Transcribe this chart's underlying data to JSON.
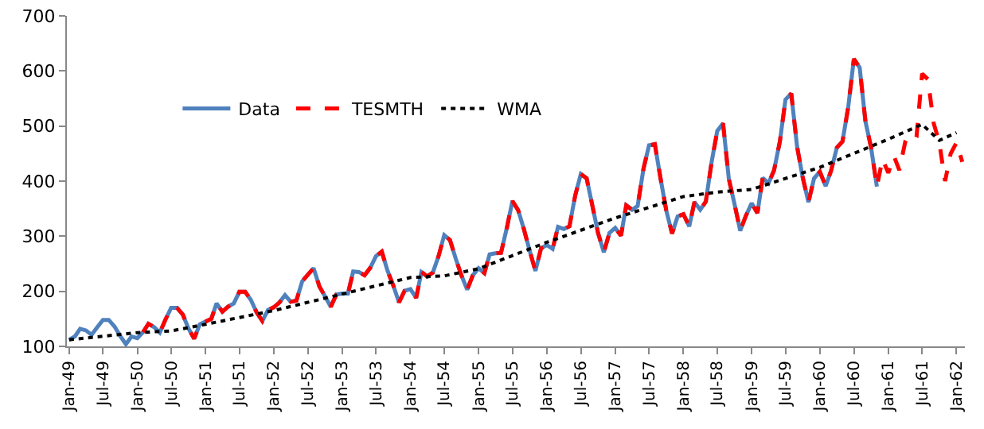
{
  "chart_data": {
    "type": "line",
    "legend": "left",
    "grid": false,
    "marker": "none",
    "xlim": [
      "1948-12-20",
      "1962-02-15"
    ],
    "xticks": [
      {
        "value": "1949-01",
        "label": "Jan-49"
      },
      {
        "value": "1949-07",
        "label": "Jul-49"
      },
      {
        "value": "1950-01",
        "label": "Jan-50"
      },
      {
        "value": "1950-07",
        "label": "Jul-50"
      },
      {
        "value": "1951-01",
        "label": "Jan-51"
      },
      {
        "value": "1951-07",
        "label": "Jul-51"
      },
      {
        "value": "1952-01",
        "label": "Jan-52"
      },
      {
        "value": "1952-07",
        "label": "Jul-52"
      },
      {
        "value": "1953-01",
        "label": "Jan-53"
      },
      {
        "value": "1953-07",
        "label": "Jul-53"
      },
      {
        "value": "1954-01",
        "label": "Jan-54"
      },
      {
        "value": "1954-07",
        "label": "Jul-54"
      },
      {
        "value": "1955-01",
        "label": "Jan-55"
      },
      {
        "value": "1955-07",
        "label": "Jul-55"
      },
      {
        "value": "1956-01",
        "label": "Jan-56"
      },
      {
        "value": "1956-07",
        "label": "Jul-56"
      },
      {
        "value": "1957-01",
        "label": "Jan-57"
      },
      {
        "value": "1957-07",
        "label": "Jul-57"
      },
      {
        "value": "1958-01",
        "label": "Jan-58"
      },
      {
        "value": "1958-07",
        "label": "Jul-58"
      },
      {
        "value": "1959-01",
        "label": "Jan-59"
      },
      {
        "value": "1959-07",
        "label": "Jul-59"
      },
      {
        "value": "1960-01",
        "label": "Jan-60"
      },
      {
        "value": "1960-07",
        "label": "Jul-60"
      },
      {
        "value": "1961-01",
        "label": "Jan-61"
      },
      {
        "value": "1961-07",
        "label": "Jul-61"
      },
      {
        "value": "1962-01",
        "label": "Jan-62"
      }
    ],
    "ylim": [
      100,
      700
    ],
    "yticks": [
      100,
      200,
      300,
      400,
      500,
      600,
      700
    ],
    "series": [
      {
        "name": "Data",
        "color": "#4f81bd",
        "line_style": "solid",
        "x": [
          "1949-01",
          "1949-02",
          "1949-03",
          "1949-04",
          "1949-05",
          "1949-06",
          "1949-07",
          "1949-08",
          "1949-09",
          "1949-10",
          "1949-11",
          "1949-12",
          "1950-01",
          "1950-02",
          "1950-03",
          "1950-04",
          "1950-05",
          "1950-06",
          "1950-07",
          "1950-08",
          "1950-09",
          "1950-10",
          "1950-11",
          "1950-12",
          "1951-01",
          "1951-02",
          "1951-03",
          "1951-04",
          "1951-05",
          "1951-06",
          "1951-07",
          "1951-08",
          "1951-09",
          "1951-10",
          "1951-11",
          "1951-12",
          "1952-01",
          "1952-02",
          "1952-03",
          "1952-04",
          "1952-05",
          "1952-06",
          "1952-07",
          "1952-08",
          "1952-09",
          "1952-10",
          "1952-11",
          "1952-12",
          "1953-01",
          "1953-02",
          "1953-03",
          "1953-04",
          "1953-05",
          "1953-06",
          "1953-07",
          "1953-08",
          "1953-09",
          "1953-10",
          "1953-11",
          "1953-12",
          "1954-01",
          "1954-02",
          "1954-03",
          "1954-04",
          "1954-05",
          "1954-06",
          "1954-07",
          "1954-08",
          "1954-09",
          "1954-10",
          "1954-11",
          "1954-12",
          "1955-01",
          "1955-02",
          "1955-03",
          "1955-04",
          "1955-05",
          "1955-06",
          "1955-07",
          "1955-08",
          "1955-09",
          "1955-10",
          "1955-11",
          "1955-12",
          "1956-01",
          "1956-02",
          "1956-03",
          "1956-04",
          "1956-05",
          "1956-06",
          "1956-07",
          "1956-08",
          "1956-09",
          "1956-10",
          "1956-11",
          "1956-12",
          "1957-01",
          "1957-02",
          "1957-03",
          "1957-04",
          "1957-05",
          "1957-06",
          "1957-07",
          "1957-08",
          "1957-09",
          "1957-10",
          "1957-11",
          "1957-12",
          "1958-01",
          "1958-02",
          "1958-03",
          "1958-04",
          "1958-05",
          "1958-06",
          "1958-07",
          "1958-08",
          "1958-09",
          "1958-10",
          "1958-11",
          "1958-12",
          "1959-01",
          "1959-02",
          "1959-03",
          "1959-04",
          "1959-05",
          "1959-06",
          "1959-07",
          "1959-08",
          "1959-09",
          "1959-10",
          "1959-11",
          "1959-12",
          "1960-01",
          "1960-02",
          "1960-03",
          "1960-04",
          "1960-05",
          "1960-06",
          "1960-07",
          "1960-08",
          "1960-09",
          "1960-10",
          "1960-11"
        ],
        "values": [
          112,
          118,
          132,
          129,
          121,
          135,
          148,
          148,
          136,
          119,
          104,
          118,
          115,
          126,
          141,
          135,
          125,
          149,
          170,
          170,
          158,
          133,
          114,
          140,
          145,
          150,
          178,
          163,
          172,
          178,
          199,
          199,
          184,
          162,
          146,
          166,
          171,
          180,
          193,
          181,
          183,
          218,
          230,
          242,
          209,
          191,
          172,
          194,
          196,
          196,
          236,
          235,
          229,
          243,
          264,
          272,
          237,
          211,
          180,
          201,
          204,
          188,
          235,
          227,
          234,
          264,
          302,
          293,
          259,
          229,
          203,
          229,
          242,
          233,
          267,
          269,
          270,
          315,
          364,
          347,
          312,
          274,
          237,
          278,
          284,
          277,
          317,
          313,
          318,
          374,
          413,
          405,
          355,
          306,
          271,
          306,
          315,
          301,
          356,
          348,
          355,
          422,
          465,
          467,
          404,
          347,
          305,
          336,
          340,
          318,
          362,
          348,
          363,
          435,
          491,
          505,
          404,
          359,
          310,
          337,
          360,
          342,
          406,
          396,
          420,
          472,
          548,
          559,
          463,
          407,
          362,
          405,
          417,
          391,
          419,
          461,
          472,
          535,
          622,
          606,
          508,
          461,
          390
        ]
      },
      {
        "name": "TESMTH",
        "color": "#ff0000",
        "line_style": "dashed",
        "x": [
          "1950-02",
          "1950-03",
          "1950-04",
          "1950-05",
          "1950-06",
          "1950-07",
          "1950-08",
          "1950-09",
          "1950-10",
          "1950-11",
          "1950-12",
          "1951-01",
          "1951-02",
          "1951-03",
          "1951-04",
          "1951-05",
          "1951-06",
          "1951-07",
          "1951-08",
          "1951-09",
          "1951-10",
          "1951-11",
          "1951-12",
          "1952-01",
          "1952-02",
          "1952-03",
          "1952-04",
          "1952-05",
          "1952-06",
          "1952-07",
          "1952-08",
          "1952-09",
          "1952-10",
          "1952-11",
          "1952-12",
          "1953-01",
          "1953-02",
          "1953-03",
          "1953-04",
          "1953-05",
          "1953-06",
          "1953-07",
          "1953-08",
          "1953-09",
          "1953-10",
          "1953-11",
          "1953-12",
          "1954-01",
          "1954-02",
          "1954-03",
          "1954-04",
          "1954-05",
          "1954-06",
          "1954-07",
          "1954-08",
          "1954-09",
          "1954-10",
          "1954-11",
          "1954-12",
          "1955-01",
          "1955-02",
          "1955-03",
          "1955-04",
          "1955-05",
          "1955-06",
          "1955-07",
          "1955-08",
          "1955-09",
          "1955-10",
          "1955-11",
          "1955-12",
          "1956-01",
          "1956-02",
          "1956-03",
          "1956-04",
          "1956-05",
          "1956-06",
          "1956-07",
          "1956-08",
          "1956-09",
          "1956-10",
          "1956-11",
          "1956-12",
          "1957-01",
          "1957-02",
          "1957-03",
          "1957-04",
          "1957-05",
          "1957-06",
          "1957-07",
          "1957-08",
          "1957-09",
          "1957-10",
          "1957-11",
          "1957-12",
          "1958-01",
          "1958-02",
          "1958-03",
          "1958-04",
          "1958-05",
          "1958-06",
          "1958-07",
          "1958-08",
          "1958-09",
          "1958-10",
          "1958-11",
          "1958-12",
          "1959-01",
          "1959-02",
          "1959-03",
          "1959-04",
          "1959-05",
          "1959-06",
          "1959-07",
          "1959-08",
          "1959-09",
          "1959-10",
          "1959-11",
          "1959-12",
          "1960-01",
          "1960-02",
          "1960-03",
          "1960-04",
          "1960-05",
          "1960-06",
          "1960-07",
          "1960-08",
          "1960-09",
          "1960-10",
          "1960-11",
          "1960-12",
          "1961-01",
          "1961-02",
          "1961-03",
          "1961-04",
          "1961-05",
          "1961-06",
          "1961-07",
          "1961-08",
          "1961-09",
          "1961-10",
          "1961-11",
          "1961-12",
          "1962-01",
          "1962-02"
        ],
        "values": [
          126,
          141,
          135,
          125,
          149,
          170,
          170,
          158,
          133,
          114,
          140,
          145,
          150,
          178,
          163,
          172,
          178,
          199,
          199,
          184,
          162,
          146,
          166,
          171,
          180,
          193,
          181,
          183,
          218,
          230,
          242,
          209,
          191,
          172,
          194,
          196,
          196,
          236,
          235,
          229,
          243,
          264,
          272,
          237,
          211,
          180,
          201,
          204,
          188,
          235,
          227,
          234,
          264,
          302,
          293,
          259,
          229,
          203,
          229,
          242,
          233,
          267,
          269,
          270,
          315,
          364,
          347,
          312,
          274,
          237,
          278,
          284,
          277,
          317,
          313,
          318,
          374,
          413,
          405,
          355,
          306,
          271,
          306,
          315,
          301,
          356,
          348,
          355,
          422,
          465,
          467,
          404,
          347,
          305,
          336,
          340,
          318,
          362,
          348,
          363,
          435,
          491,
          505,
          404,
          359,
          310,
          337,
          360,
          342,
          406,
          396,
          420,
          472,
          548,
          559,
          463,
          407,
          362,
          405,
          417,
          391,
          419,
          461,
          472,
          535,
          622,
          606,
          508,
          461,
          390,
          440,
          415,
          445,
          420,
          470,
          465,
          480,
          595,
          585,
          505,
          470,
          400,
          450,
          470,
          435
        ]
      },
      {
        "name": "WMA",
        "color": "#000000",
        "line_style": "dotted",
        "x": [
          "1949-01",
          "1950-01",
          "1950-07",
          "1951-01",
          "1952-01",
          "1953-01",
          "1953-07",
          "1954-01",
          "1954-07",
          "1955-01",
          "1956-01",
          "1957-01",
          "1958-01",
          "1958-07",
          "1959-01",
          "1960-01",
          "1961-01",
          "1961-07",
          "1961-10",
          "1962-01"
        ],
        "values": [
          112,
          125,
          128,
          140,
          165,
          195,
          210,
          225,
          228,
          241,
          289,
          333,
          372,
          380,
          385,
          425,
          476,
          503,
          474,
          488
        ]
      }
    ]
  }
}
